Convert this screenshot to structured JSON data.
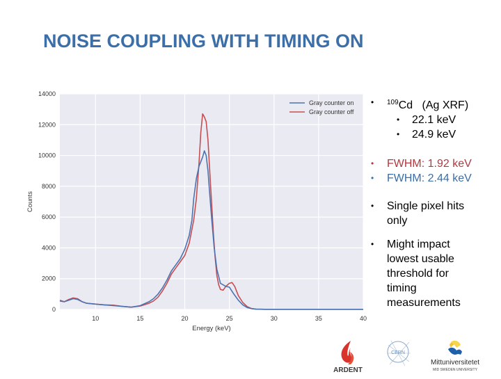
{
  "slide": {
    "title": "NOISE COUPLING WITH TIMING ON"
  },
  "bullets": {
    "source_isotope_mass": "109",
    "source_isotope": "Cd",
    "source_note": "(Ag XRF)",
    "lines": [
      "22.1 keV",
      "24.9 keV"
    ],
    "fwhm_off": "FWHM: 1.92 keV",
    "fwhm_on": "FWHM: 2.44 keV",
    "single_pixel_1": "Single pixel hits",
    "single_pixel_2": "only",
    "impact_1": "Might impact",
    "impact_2": "lowest usable",
    "impact_3": "threshold for",
    "impact_4": "timing",
    "impact_5": "measurements",
    "bullet_glyph": "•"
  },
  "colors": {
    "title": "#3c6ea8",
    "gray_counter_on": "#4c72b0",
    "gray_counter_off": "#c44e52",
    "plot_bg": "#eaeaf2",
    "grid": "#ffffff"
  },
  "logos": {
    "ardent": "ARDENT",
    "cern": "CERN",
    "miun": "Mittuniversitetet",
    "miun_sub": "MID SWEDEN UNIVERSITY"
  },
  "chart_data": {
    "type": "line",
    "title": "",
    "xlabel": "Energy (keV)",
    "ylabel": "Counts",
    "xlim": [
      6,
      40
    ],
    "ylim": [
      0,
      14000
    ],
    "xticks": [
      10,
      15,
      20,
      25,
      30,
      35,
      40
    ],
    "yticks": [
      0,
      2000,
      4000,
      6000,
      8000,
      10000,
      12000,
      14000
    ],
    "grid": true,
    "legend_position": "upper right",
    "series": [
      {
        "name": "Gray counter on",
        "color": "#4c72b0",
        "x": [
          6,
          6.5,
          7,
          7.5,
          8,
          8.5,
          9,
          10,
          11,
          12,
          13,
          14,
          15,
          16,
          16.5,
          17,
          17.5,
          18,
          18.5,
          19,
          19.5,
          20,
          20.5,
          20.8,
          21,
          21.3,
          21.6,
          22,
          22.2,
          22.4,
          22.6,
          22.8,
          23,
          23.3,
          23.6,
          24,
          24.3,
          24.6,
          25,
          25.5,
          26,
          26.5,
          27,
          27.5,
          28,
          29,
          30,
          35,
          40
        ],
        "y": [
          550,
          500,
          600,
          700,
          650,
          500,
          400,
          350,
          300,
          250,
          200,
          150,
          250,
          500,
          700,
          1000,
          1400,
          1900,
          2500,
          2900,
          3300,
          3900,
          4800,
          5800,
          7200,
          8500,
          9300,
          9900,
          10300,
          10000,
          9000,
          7500,
          6000,
          4000,
          2600,
          1700,
          1600,
          1500,
          1450,
          1000,
          600,
          300,
          120,
          50,
          20,
          10,
          10,
          10,
          10
        ]
      },
      {
        "name": "Gray counter off",
        "color": "#c44e52",
        "x": [
          6,
          6.5,
          7,
          7.5,
          8,
          8.5,
          9,
          10,
          11,
          12,
          13,
          14,
          15,
          16,
          16.5,
          17,
          17.5,
          18,
          18.5,
          19,
          19.5,
          20,
          20.5,
          21,
          21.3,
          21.6,
          21.8,
          22,
          22.2,
          22.4,
          22.6,
          22.8,
          23,
          23.2,
          23.4,
          23.6,
          23.8,
          24,
          24.3,
          24.6,
          25,
          25.3,
          25.6,
          26,
          26.5,
          27,
          27.5,
          28,
          29,
          30,
          35,
          40
        ],
        "y": [
          600,
          500,
          650,
          750,
          700,
          500,
          400,
          350,
          300,
          280,
          200,
          150,
          220,
          400,
          550,
          800,
          1200,
          1700,
          2300,
          2700,
          3100,
          3500,
          4300,
          5800,
          7200,
          9500,
          11500,
          12700,
          12500,
          12200,
          11000,
          9000,
          7000,
          5000,
          3400,
          2200,
          1600,
          1300,
          1250,
          1500,
          1700,
          1750,
          1500,
          900,
          450,
          180,
          60,
          20,
          10,
          10,
          10,
          10
        ]
      }
    ]
  }
}
